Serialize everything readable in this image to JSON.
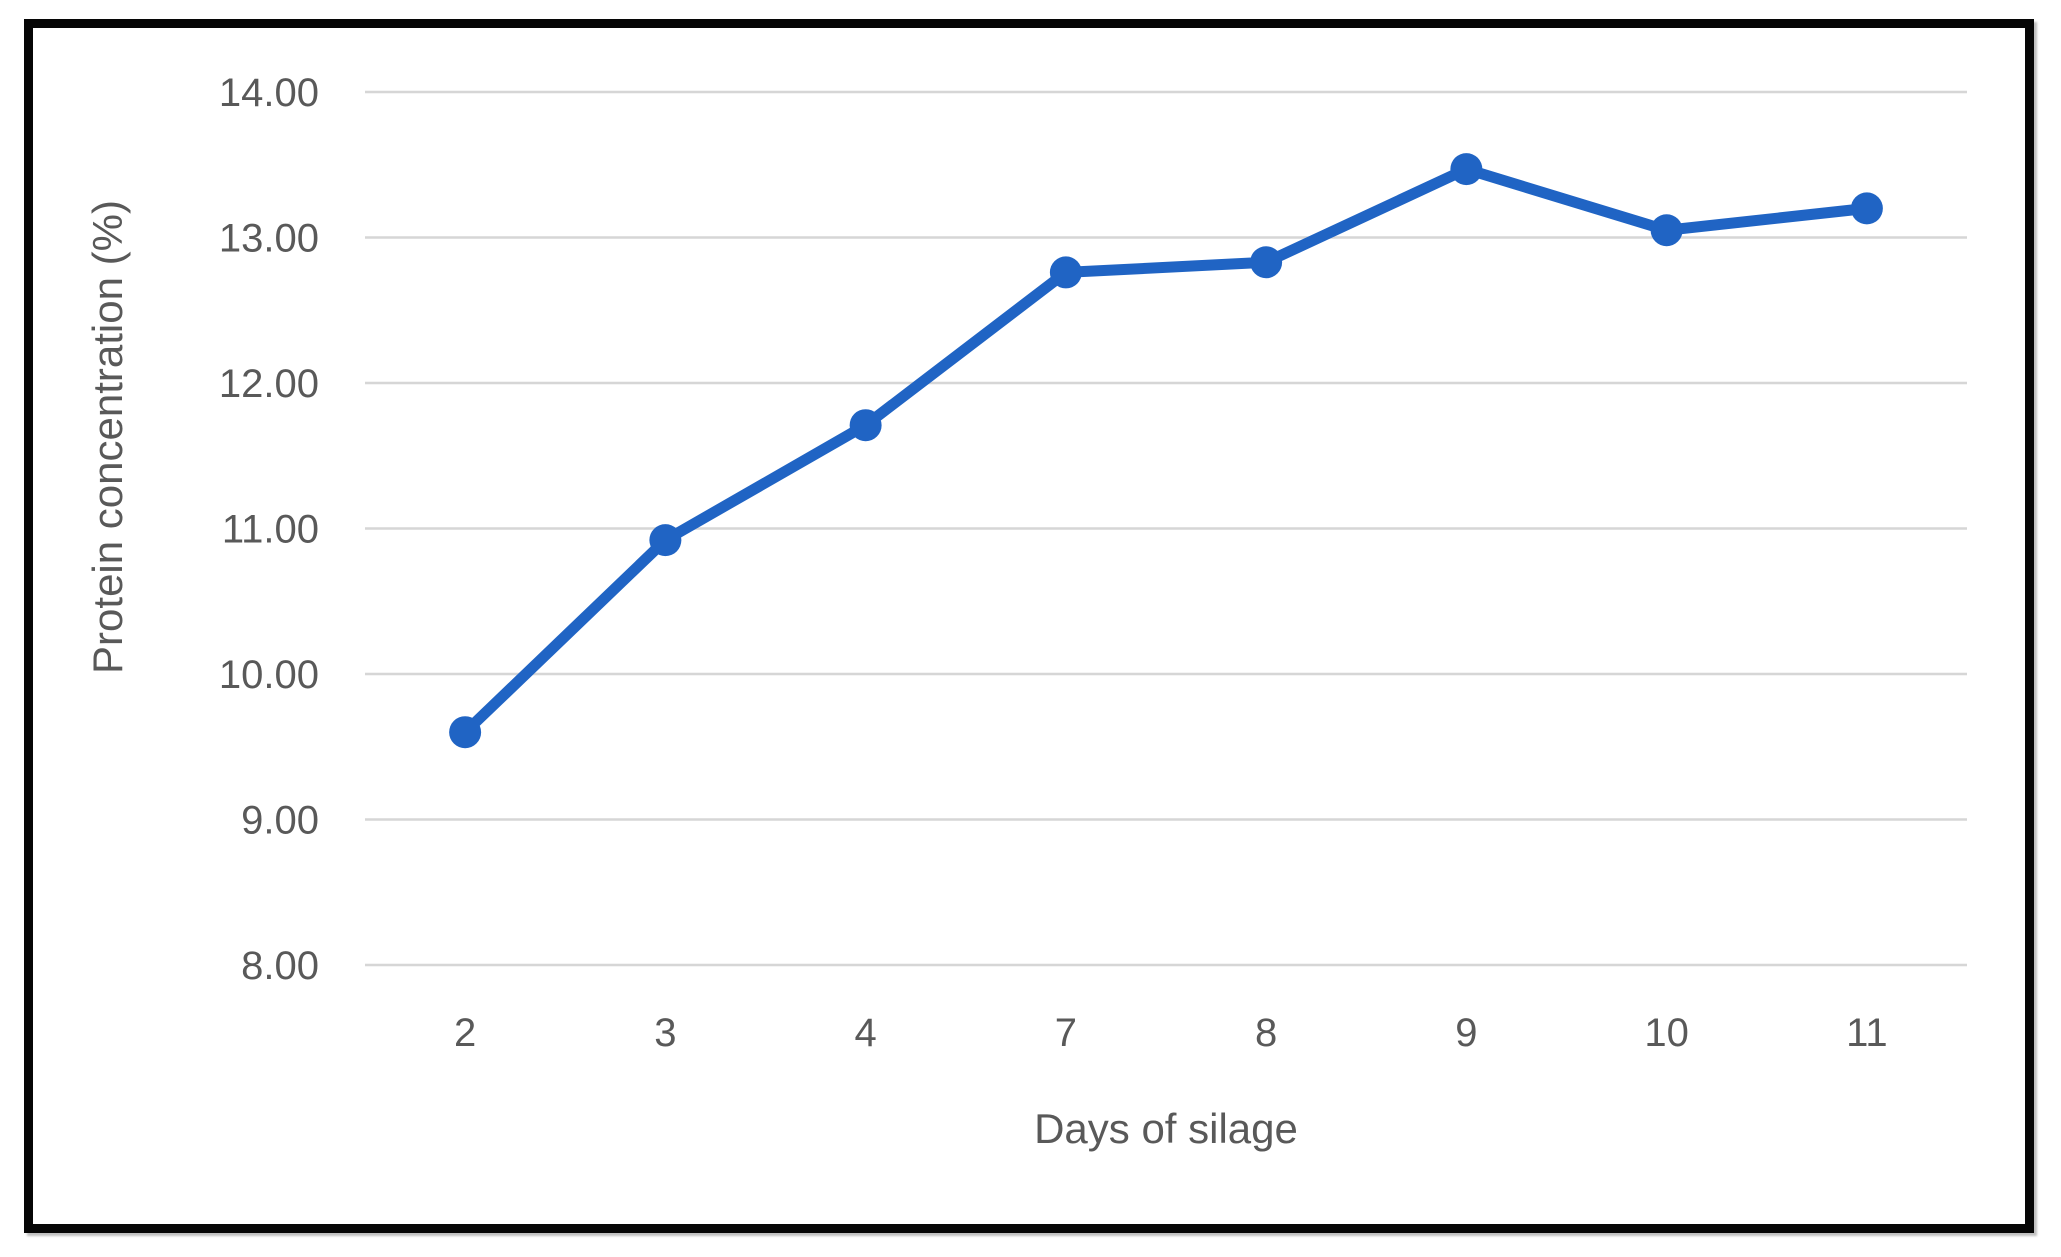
{
  "figure": {
    "background_color": "#ffffff",
    "frame_border_color": "#060606",
    "plot_background_color": "#ffffff"
  },
  "chart_data": {
    "type": "line",
    "title": "",
    "categories": [
      "2",
      "3",
      "4",
      "7",
      "8",
      "9",
      "10",
      "11"
    ],
    "series": [
      {
        "name": "Protein concentration",
        "values": [
          9.6,
          10.92,
          11.71,
          12.76,
          12.83,
          13.47,
          13.05,
          13.2
        ],
        "color": "#2064c4",
        "marker": "circle"
      }
    ],
    "xlabel": "Days of silage",
    "ylabel": "Protein concentration (%)",
    "ylim": [
      8,
      14
    ],
    "ytick_step": 1,
    "ytick_labels": [
      "8.00",
      "9.00",
      "10.00",
      "11.00",
      "12.00",
      "13.00",
      "14.00"
    ],
    "xtick_labels": [
      "2",
      "3",
      "4",
      "7",
      "8",
      "9",
      "10",
      "11"
    ],
    "grid": true,
    "grid_axis": "y",
    "legend": false,
    "text_color": "#595959",
    "grid_color": "#d6d6d6"
  }
}
